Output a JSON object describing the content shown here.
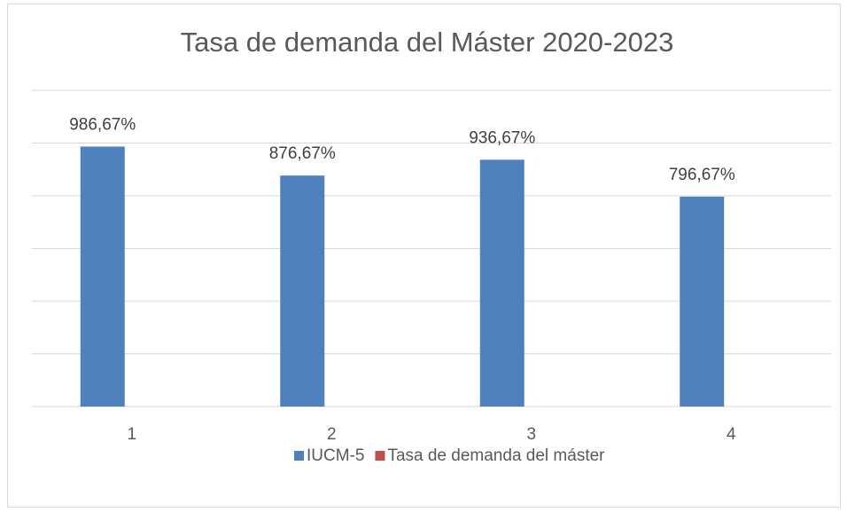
{
  "chart_data": {
    "type": "bar",
    "title": "Tasa de demanda del Máster 2020-2023",
    "categories": [
      "1",
      "2",
      "3",
      "4"
    ],
    "series": [
      {
        "name": "IUCM-5",
        "color": "#4f81bd",
        "values": [
          986.67,
          876.67,
          936.67,
          796.67
        ],
        "value_labels": [
          "986,67%",
          "876,67%",
          "936,67%",
          "796,67%"
        ]
      },
      {
        "name": "Tasa de demanda del máster",
        "color": "#c0504d",
        "values": [
          null,
          null,
          null,
          null
        ]
      }
    ],
    "ylim": [
      0,
      1200
    ],
    "yticks": [
      0,
      200,
      400,
      600,
      800,
      1000,
      1200
    ],
    "grid": true,
    "legend": "bottom"
  }
}
